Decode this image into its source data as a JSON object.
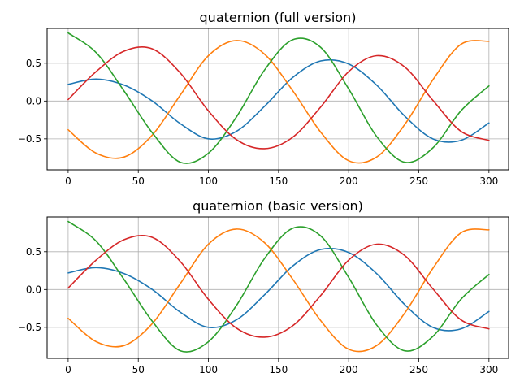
{
  "chart_data": [
    {
      "type": "line",
      "title": "quaternion (full version)",
      "xlim": [
        -15,
        314
      ],
      "ylim": [
        -0.91,
        0.96
      ],
      "xticks": [
        0,
        50,
        100,
        150,
        200,
        250,
        300
      ],
      "xtick_labels": [
        "0",
        "50",
        "100",
        "150",
        "200",
        "250",
        "300"
      ],
      "yticks": [
        -0.5,
        0.0,
        0.5
      ],
      "ytick_labels": [
        "−0.5",
        "0.0",
        "0.5"
      ],
      "grid": true,
      "x": [
        0,
        20,
        40,
        60,
        80,
        100,
        120,
        140,
        160,
        180,
        200,
        220,
        240,
        260,
        280,
        300
      ],
      "series": [
        {
          "color": "#1f77b4",
          "values": [
            0.22,
            0.29,
            0.21,
            0.0,
            -0.3,
            -0.5,
            -0.4,
            -0.07,
            0.31,
            0.53,
            0.49,
            0.21,
            -0.2,
            -0.5,
            -0.52,
            -0.29
          ]
        },
        {
          "color": "#ff7f0e",
          "values": [
            -0.38,
            -0.69,
            -0.74,
            -0.45,
            0.08,
            0.6,
            0.8,
            0.62,
            0.14,
            -0.41,
            -0.79,
            -0.74,
            -0.31,
            0.28,
            0.75,
            0.79
          ]
        },
        {
          "color": "#2ca02c",
          "values": [
            0.9,
            0.64,
            0.13,
            -0.42,
            -0.81,
            -0.69,
            -0.21,
            0.41,
            0.81,
            0.71,
            0.16,
            -0.47,
            -0.81,
            -0.62,
            -0.13,
            0.2
          ]
        },
        {
          "color": "#d62728",
          "values": [
            0.02,
            0.39,
            0.66,
            0.69,
            0.37,
            -0.13,
            -0.51,
            -0.63,
            -0.48,
            -0.08,
            0.39,
            0.6,
            0.45,
            0.01,
            -0.4,
            -0.52
          ]
        }
      ]
    },
    {
      "type": "line",
      "title": "quaternion (basic version)",
      "xlim": [
        -15,
        314
      ],
      "ylim": [
        -0.91,
        0.96
      ],
      "xticks": [
        0,
        50,
        100,
        150,
        200,
        250,
        300
      ],
      "xtick_labels": [
        "0",
        "50",
        "100",
        "150",
        "200",
        "250",
        "300"
      ],
      "yticks": [
        -0.5,
        0.0,
        0.5
      ],
      "ytick_labels": [
        "−0.5",
        "0.0",
        "0.5"
      ],
      "grid": true,
      "x": [
        0,
        20,
        40,
        60,
        80,
        100,
        120,
        140,
        160,
        180,
        200,
        220,
        240,
        260,
        280,
        300
      ],
      "series": [
        {
          "color": "#1f77b4",
          "values": [
            0.22,
            0.29,
            0.21,
            0.0,
            -0.3,
            -0.5,
            -0.4,
            -0.07,
            0.31,
            0.53,
            0.49,
            0.21,
            -0.2,
            -0.5,
            -0.52,
            -0.29
          ]
        },
        {
          "color": "#ff7f0e",
          "values": [
            -0.38,
            -0.69,
            -0.74,
            -0.45,
            0.08,
            0.6,
            0.8,
            0.62,
            0.14,
            -0.41,
            -0.79,
            -0.74,
            -0.31,
            0.28,
            0.75,
            0.79
          ]
        },
        {
          "color": "#2ca02c",
          "values": [
            0.9,
            0.64,
            0.13,
            -0.42,
            -0.81,
            -0.69,
            -0.21,
            0.41,
            0.81,
            0.71,
            0.16,
            -0.47,
            -0.81,
            -0.62,
            -0.13,
            0.2
          ]
        },
        {
          "color": "#d62728",
          "values": [
            0.02,
            0.39,
            0.66,
            0.69,
            0.37,
            -0.13,
            -0.51,
            -0.63,
            -0.48,
            -0.08,
            0.39,
            0.6,
            0.45,
            0.01,
            -0.4,
            -0.52
          ]
        }
      ]
    }
  ]
}
